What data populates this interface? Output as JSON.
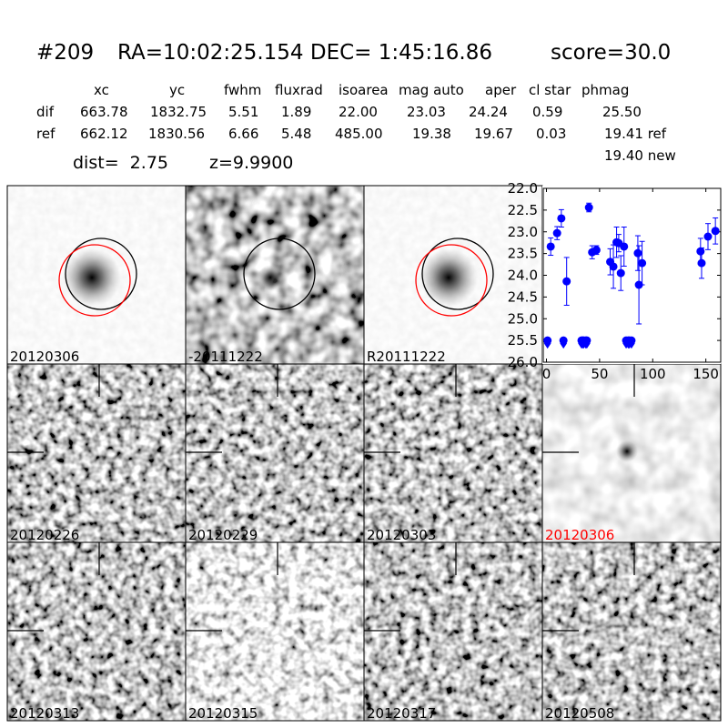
{
  "header": {
    "id": "#209",
    "coords": "RA=10:02:25.154 DEC= 1:45:16.86",
    "score": "score=30.0"
  },
  "table": {
    "columns": [
      "xc",
      "yc",
      "fwhm",
      "fluxrad",
      "isoarea",
      "mag auto",
      "aper",
      "cl star",
      "phmag"
    ],
    "rows": [
      [
        "dif",
        "663.78",
        "1832.75",
        "5.51",
        "1.89",
        "22.00",
        "23.03",
        "24.24",
        "0.59",
        "25.50"
      ],
      [
        "ref",
        "662.12",
        "1830.56",
        "6.66",
        "5.48",
        "485.00",
        "19.38",
        "19.67",
        "0.03",
        "19.41 ref"
      ]
    ],
    "extra": "19.40 new"
  },
  "dist": "dist=  2.75",
  "z": "z=9.9900",
  "stamps": [
    {
      "label": "20120306"
    },
    {
      "label": "-20111222"
    },
    {
      "label": "R20111222"
    },
    {
      "label": "20120226"
    },
    {
      "label": "20120229"
    },
    {
      "label": "20120303"
    },
    {
      "label": "20120306",
      "color": "#ff0000"
    },
    {
      "label": "20120313"
    },
    {
      "label": "20120315"
    },
    {
      "label": "20120317"
    },
    {
      "label": "20120508"
    }
  ],
  "chart_data": {
    "type": "scatter",
    "xlim": [
      -3,
      164
    ],
    "ylim": [
      26.0,
      22.0
    ],
    "xticks": [
      0,
      50,
      100,
      150
    ],
    "yticks": [
      {
        "value": 22,
        "label": "22.0"
      },
      {
        "value": 22.5,
        "label": "22.5"
      },
      {
        "value": 23,
        "label": "23.0"
      },
      {
        "value": 23.5,
        "label": "23.5"
      },
      {
        "value": 24,
        "label": "24.0"
      },
      {
        "value": 24.5,
        "label": "24.5"
      },
      {
        "value": 25,
        "label": "25.0"
      },
      {
        "value": 25.5,
        "label": "25.5"
      },
      {
        "value": 26,
        "label": "26.0"
      }
    ],
    "series": [
      {
        "color": "#0000ff",
        "marker": "point",
        "x": [
          4,
          10,
          14,
          19,
          40,
          43,
          47,
          60,
          63,
          66,
          68,
          70,
          73,
          86,
          87,
          90,
          145,
          146,
          152,
          159
        ],
        "values": [
          23.34,
          23.03,
          22.69,
          24.14,
          22.44,
          23.47,
          23.42,
          23.69,
          23.8,
          23.24,
          23.26,
          23.95,
          23.34,
          23.49,
          24.22,
          23.72,
          23.45,
          23.72,
          23.11,
          22.98
        ],
        "errors": [
          0.2,
          0.15,
          0.2,
          0.55,
          0.1,
          0.15,
          0.1,
          0.3,
          0.5,
          0.35,
          0.2,
          0.4,
          0.45,
          0.4,
          0.9,
          0.5,
          0.3,
          0.35,
          0.3,
          0.3
        ]
      },
      {
        "color": "#0000ff",
        "marker": "limit",
        "x": [
          1,
          16,
          33,
          34,
          35,
          37,
          38,
          75,
          77,
          78,
          80
        ],
        "values": [
          25.5,
          25.5,
          25.5,
          25.5,
          25.5,
          25.5,
          25.5,
          25.5,
          25.5,
          25.5,
          25.5
        ]
      }
    ]
  }
}
